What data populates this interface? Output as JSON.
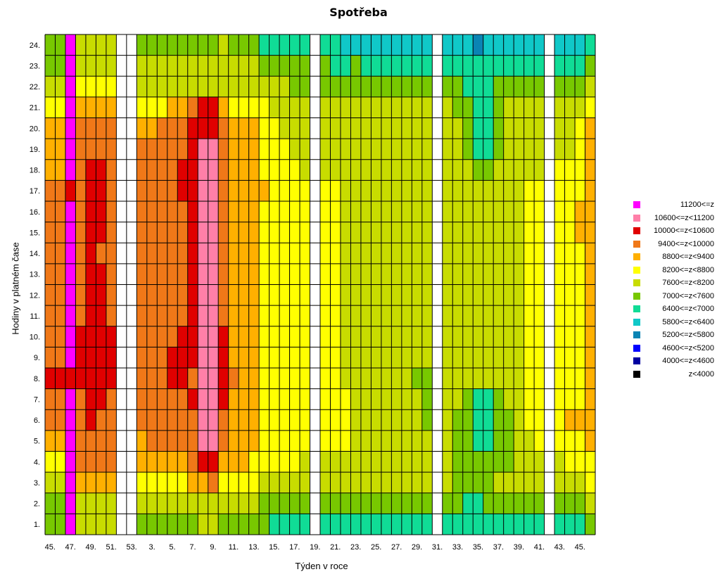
{
  "chart_data": {
    "type": "heatmap",
    "title": "Spotřeba",
    "xlabel": "Týden v roce",
    "ylabel": "Hodiny v platném čase",
    "x_tick_labels": [
      "45.",
      "47.",
      "49.",
      "51.",
      "53.",
      "3.",
      "5.",
      "7.",
      "9.",
      "11.",
      "13.",
      "15.",
      "17.",
      "19.",
      "21.",
      "23.",
      "25.",
      "27.",
      "29.",
      "31.",
      "33.",
      "35.",
      "37.",
      "39.",
      "41.",
      "43.",
      "45."
    ],
    "y_tick_labels": [
      "1.",
      "2.",
      "3.",
      "4.",
      "5.",
      "6.",
      "7.",
      "8.",
      "9.",
      "10.",
      "11.",
      "12.",
      "13.",
      "14.",
      "15.",
      "16.",
      "17.",
      "18.",
      "19.",
      "20.",
      "21.",
      "22.",
      "23.",
      "24."
    ],
    "weeks": [
      "45",
      "46",
      "47",
      "48",
      "49",
      "50",
      "51",
      "52",
      "53",
      "1",
      "2",
      "3",
      "4",
      "5",
      "6",
      "7",
      "8",
      "9",
      "10",
      "11",
      "12",
      "13",
      "14",
      "15",
      "16",
      "17",
      "18",
      "19",
      "20",
      "21",
      "22",
      "23",
      "24",
      "25",
      "26",
      "27",
      "28",
      "29",
      "30",
      "31",
      "32",
      "33",
      "34",
      "35",
      "36",
      "37",
      "38",
      "39",
      "40",
      "41",
      "42",
      "43",
      "44",
      "45"
    ],
    "legend": [
      {
        "label": "11200<=z",
        "color": "#ff00ff"
      },
      {
        "label": "10600<=z<11200",
        "color": "#ff7fa8"
      },
      {
        "label": "10000<=z<10600",
        "color": "#e00000"
      },
      {
        "label": "9400<=z<10000",
        "color": "#f07818"
      },
      {
        "label": "8800<=z<9400",
        "color": "#ffb000"
      },
      {
        "label": "8200<=z<8800",
        "color": "#ffff00"
      },
      {
        "label": "7600<=z<8200",
        "color": "#c8dc00"
      },
      {
        "label": "7000<=z<7600",
        "color": "#78c800"
      },
      {
        "label": "6400<=z<7000",
        "color": "#10dc96"
      },
      {
        "label": "5800<=z<6400",
        "color": "#10c8c8"
      },
      {
        "label": "5200<=z<5800",
        "color": "#0a84b4"
      },
      {
        "label": "4600<=z<5200",
        "color": "#0000ff"
      },
      {
        "label": "4000<=z<4600",
        "color": "#0000a0"
      },
      {
        "label": "z<4000",
        "color": "#000000"
      }
    ],
    "rows_hour_24_to_1": [
      [
        7,
        7,
        0,
        6,
        6,
        6,
        6,
        -1,
        -1,
        7,
        7,
        7,
        7,
        7,
        7,
        7,
        7,
        6,
        7,
        7,
        7,
        8,
        8,
        8,
        8,
        8,
        -1,
        8,
        8,
        9,
        9,
        9,
        9,
        9,
        9,
        9,
        9,
        9,
        -1,
        9,
        9,
        9,
        10,
        9,
        9,
        9,
        9,
        9,
        9,
        -1,
        9,
        9,
        9,
        8
      ],
      [
        7,
        7,
        0,
        6,
        6,
        6,
        6,
        -1,
        -1,
        6,
        6,
        6,
        6,
        6,
        6,
        6,
        6,
        6,
        6,
        6,
        6,
        7,
        7,
        7,
        7,
        7,
        -1,
        7,
        8,
        8,
        7,
        8,
        8,
        8,
        8,
        8,
        8,
        8,
        -1,
        8,
        8,
        8,
        8,
        8,
        8,
        8,
        8,
        8,
        8,
        -1,
        8,
        8,
        8,
        7
      ],
      [
        6,
        6,
        0,
        5,
        5,
        5,
        5,
        -1,
        -1,
        6,
        6,
        6,
        6,
        6,
        6,
        6,
        6,
        6,
        6,
        6,
        6,
        6,
        6,
        6,
        7,
        7,
        -1,
        7,
        7,
        7,
        7,
        7,
        7,
        7,
        7,
        7,
        7,
        7,
        -1,
        7,
        7,
        8,
        8,
        8,
        7,
        7,
        7,
        7,
        7,
        -1,
        7,
        7,
        7,
        6
      ],
      [
        5,
        5,
        0,
        4,
        4,
        4,
        4,
        -1,
        -1,
        5,
        5,
        5,
        4,
        4,
        3,
        2,
        2,
        4,
        5,
        5,
        5,
        5,
        6,
        6,
        6,
        6,
        -1,
        6,
        6,
        6,
        6,
        6,
        6,
        6,
        6,
        6,
        6,
        6,
        -1,
        6,
        7,
        7,
        8,
        8,
        7,
        6,
        6,
        6,
        6,
        -1,
        6,
        6,
        6,
        5
      ],
      [
        4,
        4,
        0,
        3,
        3,
        3,
        3,
        -1,
        -1,
        4,
        4,
        3,
        3,
        3,
        2,
        2,
        2,
        3,
        4,
        4,
        4,
        5,
        5,
        6,
        6,
        6,
        -1,
        6,
        6,
        6,
        6,
        6,
        6,
        6,
        6,
        6,
        6,
        6,
        -1,
        6,
        6,
        7,
        8,
        8,
        7,
        6,
        6,
        6,
        6,
        -1,
        6,
        6,
        5,
        4
      ],
      [
        4,
        4,
        0,
        3,
        3,
        3,
        3,
        -1,
        -1,
        3,
        3,
        3,
        3,
        3,
        2,
        1,
        1,
        3,
        4,
        4,
        4,
        5,
        5,
        5,
        6,
        6,
        -1,
        6,
        6,
        6,
        6,
        6,
        6,
        6,
        6,
        6,
        6,
        6,
        -1,
        6,
        6,
        7,
        8,
        8,
        7,
        6,
        6,
        6,
        6,
        -1,
        6,
        6,
        5,
        4
      ],
      [
        4,
        4,
        0,
        3,
        2,
        2,
        3,
        -1,
        -1,
        3,
        3,
        3,
        3,
        2,
        2,
        1,
        1,
        3,
        4,
        4,
        4,
        5,
        5,
        5,
        5,
        6,
        -1,
        6,
        6,
        6,
        6,
        6,
        6,
        6,
        6,
        6,
        6,
        6,
        -1,
        6,
        6,
        6,
        7,
        7,
        6,
        6,
        6,
        6,
        6,
        -1,
        5,
        5,
        5,
        4
      ],
      [
        3,
        3,
        2,
        3,
        2,
        2,
        3,
        -1,
        -1,
        3,
        3,
        3,
        3,
        2,
        2,
        1,
        1,
        3,
        4,
        4,
        4,
        4,
        5,
        5,
        5,
        5,
        -1,
        5,
        5,
        6,
        6,
        6,
        6,
        6,
        6,
        6,
        6,
        6,
        -1,
        6,
        6,
        6,
        6,
        6,
        6,
        6,
        6,
        5,
        5,
        -1,
        5,
        5,
        5,
        4
      ],
      [
        3,
        3,
        0,
        3,
        2,
        2,
        3,
        -1,
        -1,
        3,
        3,
        3,
        3,
        3,
        2,
        1,
        1,
        3,
        4,
        4,
        4,
        5,
        5,
        5,
        5,
        5,
        -1,
        5,
        5,
        6,
        6,
        6,
        6,
        6,
        6,
        6,
        6,
        6,
        -1,
        6,
        6,
        6,
        6,
        6,
        6,
        6,
        6,
        5,
        5,
        -1,
        5,
        5,
        4,
        4
      ],
      [
        3,
        3,
        0,
        3,
        2,
        2,
        3,
        -1,
        -1,
        3,
        3,
        3,
        3,
        3,
        2,
        1,
        1,
        3,
        4,
        4,
        4,
        5,
        5,
        5,
        5,
        5,
        -1,
        5,
        5,
        6,
        6,
        6,
        6,
        6,
        6,
        6,
        6,
        6,
        -1,
        6,
        6,
        6,
        6,
        6,
        6,
        6,
        6,
        5,
        5,
        -1,
        5,
        5,
        4,
        4
      ],
      [
        3,
        3,
        0,
        3,
        2,
        3,
        3,
        -1,
        -1,
        3,
        3,
        3,
        3,
        3,
        2,
        1,
        1,
        3,
        4,
        4,
        4,
        5,
        5,
        5,
        5,
        5,
        -1,
        5,
        5,
        6,
        6,
        6,
        6,
        6,
        6,
        6,
        6,
        6,
        -1,
        6,
        6,
        6,
        6,
        6,
        6,
        6,
        6,
        5,
        5,
        -1,
        5,
        5,
        5,
        4
      ],
      [
        3,
        3,
        0,
        3,
        2,
        2,
        3,
        -1,
        -1,
        3,
        3,
        3,
        3,
        3,
        2,
        1,
        1,
        3,
        4,
        4,
        4,
        5,
        5,
        5,
        5,
        5,
        -1,
        5,
        5,
        6,
        6,
        6,
        6,
        6,
        6,
        6,
        6,
        6,
        -1,
        6,
        6,
        6,
        6,
        6,
        6,
        6,
        6,
        5,
        5,
        -1,
        5,
        5,
        5,
        4
      ],
      [
        3,
        3,
        0,
        3,
        2,
        2,
        3,
        -1,
        -1,
        3,
        3,
        3,
        3,
        3,
        2,
        1,
        1,
        3,
        4,
        4,
        4,
        5,
        5,
        5,
        5,
        5,
        -1,
        5,
        5,
        6,
        6,
        6,
        6,
        6,
        6,
        6,
        6,
        6,
        -1,
        6,
        6,
        6,
        6,
        6,
        6,
        6,
        6,
        5,
        5,
        -1,
        5,
        5,
        5,
        4
      ],
      [
        3,
        3,
        0,
        3,
        2,
        2,
        3,
        -1,
        -1,
        3,
        3,
        3,
        3,
        3,
        2,
        1,
        1,
        3,
        4,
        4,
        4,
        5,
        5,
        5,
        5,
        5,
        -1,
        5,
        5,
        6,
        6,
        6,
        6,
        6,
        6,
        6,
        6,
        6,
        -1,
        6,
        6,
        6,
        6,
        6,
        6,
        6,
        6,
        5,
        5,
        -1,
        5,
        5,
        5,
        4
      ],
      [
        3,
        3,
        0,
        2,
        2,
        2,
        2,
        -1,
        -1,
        3,
        3,
        3,
        3,
        2,
        2,
        1,
        1,
        2,
        4,
        4,
        4,
        5,
        5,
        5,
        5,
        5,
        -1,
        5,
        5,
        6,
        6,
        6,
        6,
        6,
        6,
        6,
        6,
        6,
        -1,
        6,
        6,
        6,
        6,
        6,
        6,
        6,
        6,
        5,
        5,
        -1,
        5,
        5,
        5,
        4
      ],
      [
        3,
        3,
        0,
        2,
        2,
        2,
        2,
        -1,
        -1,
        3,
        3,
        3,
        2,
        2,
        2,
        1,
        1,
        2,
        4,
        4,
        4,
        5,
        5,
        5,
        5,
        5,
        -1,
        5,
        5,
        6,
        6,
        6,
        6,
        6,
        6,
        6,
        6,
        6,
        -1,
        6,
        6,
        6,
        6,
        6,
        6,
        6,
        6,
        5,
        5,
        -1,
        5,
        5,
        5,
        4
      ],
      [
        2,
        2,
        2,
        2,
        2,
        2,
        2,
        -1,
        -1,
        3,
        3,
        3,
        2,
        2,
        3,
        1,
        1,
        2,
        3,
        4,
        4,
        5,
        5,
        5,
        5,
        5,
        -1,
        5,
        5,
        6,
        6,
        6,
        6,
        6,
        6,
        6,
        7,
        7,
        -1,
        6,
        6,
        6,
        6,
        6,
        6,
        6,
        6,
        5,
        5,
        -1,
        5,
        5,
        5,
        4
      ],
      [
        3,
        3,
        0,
        3,
        2,
        2,
        3,
        -1,
        -1,
        3,
        3,
        3,
        3,
        3,
        2,
        1,
        1,
        2,
        4,
        4,
        4,
        5,
        5,
        5,
        5,
        5,
        -1,
        5,
        5,
        5,
        6,
        6,
        6,
        6,
        6,
        6,
        6,
        7,
        -1,
        6,
        6,
        7,
        8,
        8,
        7,
        6,
        6,
        5,
        5,
        -1,
        5,
        5,
        5,
        4
      ],
      [
        3,
        3,
        0,
        3,
        2,
        3,
        3,
        -1,
        -1,
        3,
        3,
        3,
        3,
        3,
        3,
        1,
        1,
        3,
        4,
        4,
        4,
        5,
        5,
        5,
        5,
        5,
        -1,
        5,
        5,
        5,
        6,
        6,
        6,
        6,
        6,
        6,
        6,
        7,
        -1,
        6,
        7,
        7,
        8,
        8,
        7,
        7,
        6,
        5,
        5,
        -1,
        5,
        4,
        4,
        4
      ],
      [
        4,
        4,
        0,
        3,
        3,
        3,
        3,
        -1,
        -1,
        4,
        3,
        3,
        3,
        3,
        3,
        1,
        1,
        3,
        4,
        4,
        4,
        5,
        5,
        5,
        5,
        5,
        -1,
        5,
        5,
        5,
        6,
        6,
        6,
        6,
        6,
        6,
        6,
        6,
        -1,
        6,
        7,
        7,
        8,
        8,
        7,
        7,
        6,
        6,
        5,
        -1,
        5,
        5,
        5,
        4
      ],
      [
        5,
        5,
        0,
        3,
        3,
        3,
        3,
        -1,
        -1,
        4,
        4,
        4,
        4,
        4,
        3,
        2,
        2,
        4,
        4,
        4,
        5,
        5,
        5,
        5,
        5,
        6,
        -1,
        6,
        6,
        6,
        6,
        6,
        6,
        6,
        6,
        6,
        6,
        6,
        -1,
        6,
        7,
        7,
        7,
        7,
        7,
        7,
        6,
        6,
        6,
        -1,
        6,
        5,
        5,
        5
      ],
      [
        6,
        6,
        0,
        4,
        4,
        4,
        4,
        -1,
        -1,
        5,
        5,
        5,
        5,
        5,
        4,
        4,
        3,
        5,
        5,
        5,
        5,
        6,
        6,
        6,
        6,
        6,
        -1,
        6,
        6,
        6,
        6,
        6,
        6,
        6,
        6,
        6,
        6,
        6,
        -1,
        6,
        7,
        7,
        7,
        7,
        6,
        6,
        6,
        6,
        6,
        -1,
        6,
        6,
        6,
        5
      ],
      [
        7,
        7,
        0,
        6,
        6,
        6,
        6,
        -1,
        -1,
        6,
        6,
        6,
        6,
        6,
        6,
        6,
        6,
        6,
        6,
        6,
        6,
        7,
        7,
        7,
        7,
        7,
        -1,
        7,
        7,
        7,
        7,
        7,
        7,
        7,
        7,
        7,
        7,
        7,
        -1,
        7,
        7,
        8,
        8,
        7,
        7,
        7,
        7,
        7,
        7,
        -1,
        7,
        7,
        7,
        6
      ],
      [
        7,
        7,
        0,
        6,
        6,
        6,
        6,
        -1,
        -1,
        7,
        7,
        7,
        7,
        7,
        7,
        6,
        6,
        7,
        7,
        7,
        7,
        7,
        8,
        8,
        8,
        8,
        -1,
        8,
        8,
        8,
        8,
        8,
        8,
        8,
        8,
        8,
        8,
        8,
        -1,
        8,
        8,
        8,
        8,
        8,
        8,
        8,
        8,
        8,
        8,
        -1,
        8,
        8,
        8,
        7
      ]
    ]
  }
}
